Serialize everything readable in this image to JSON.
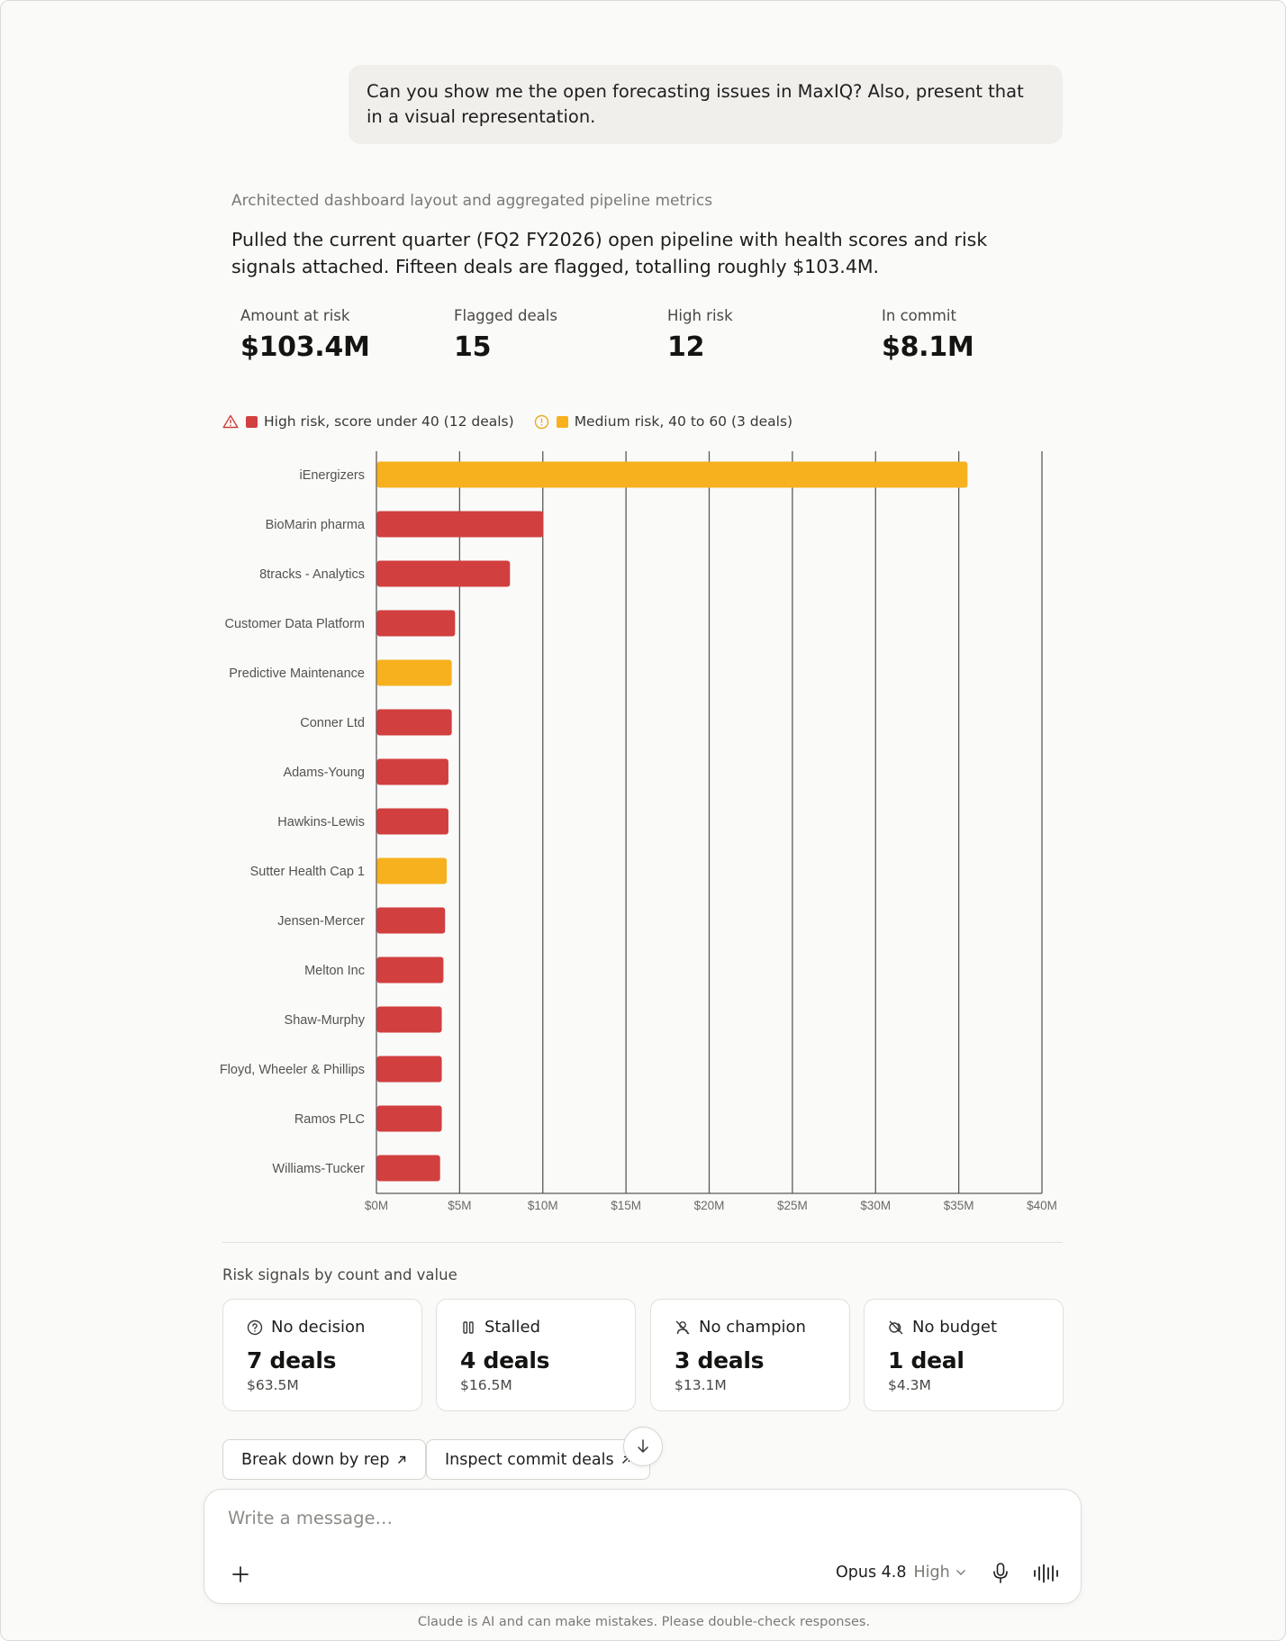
{
  "conversation": {
    "user_message": "Can you show me the open forecasting issues in MaxIQ? Also, present that in a visual representation.",
    "thinking_label": "Architected dashboard layout and aggregated pipeline metrics",
    "response_text": "Pulled the current quarter (FQ2 FY2026) open pipeline with health scores and risk signals attached. Fifteen deals are flagged, totalling roughly $103.4M."
  },
  "metrics": [
    {
      "label": "Amount at risk",
      "value": "$103.4M"
    },
    {
      "label": "Flagged deals",
      "value": "15"
    },
    {
      "label": "High risk",
      "value": "12"
    },
    {
      "label": "In commit",
      "value": "$8.1M"
    }
  ],
  "legend": {
    "high": "High risk, score under 40 (12 deals)",
    "medium": "Medium risk, 40 to 60 (3 deals)"
  },
  "colors": {
    "high": "#d23f3f",
    "medium": "#f7b11e",
    "high_icon": "#c8423a",
    "medium_icon": "#e8ab1c",
    "gridline": "#5a5a5a"
  },
  "chart_data": {
    "type": "bar",
    "orientation": "horizontal",
    "categories": [
      "iEnergizers",
      "BioMarin pharma",
      "8tracks - Analytics",
      "Customer Data Platform",
      "Predictive Maintenance",
      "Conner Ltd",
      "Adams-Young",
      "Hawkins-Lewis",
      "Sutter Health Cap 1",
      "Jensen-Mercer",
      "Melton Inc",
      "Shaw-Murphy",
      "Floyd, Wheeler & Phillips",
      "Ramos PLC",
      "Williams-Tucker"
    ],
    "values": [
      35.5,
      10.0,
      8.0,
      4.7,
      4.5,
      4.5,
      4.3,
      4.3,
      4.2,
      4.1,
      4.0,
      3.9,
      3.9,
      3.9,
      3.8
    ],
    "risk": [
      "medium",
      "high",
      "high",
      "high",
      "medium",
      "high",
      "high",
      "high",
      "medium",
      "high",
      "high",
      "high",
      "high",
      "high",
      "high"
    ],
    "xlim": [
      0,
      40
    ],
    "x_ticks": [
      0,
      5,
      10,
      15,
      20,
      25,
      30,
      35,
      40
    ],
    "x_tick_labels": [
      "$0M",
      "$5M",
      "$10M",
      "$15M",
      "$20M",
      "$25M",
      "$30M",
      "$35M",
      "$40M"
    ],
    "grid": true,
    "legend_position": "top-left"
  },
  "signals": {
    "title": "Risk signals by count and value",
    "cards": [
      {
        "label": "No decision",
        "count": "7 deals",
        "value": "$63.5M",
        "icon": "question-circle-icon"
      },
      {
        "label": "Stalled",
        "count": "4 deals",
        "value": "$16.5M",
        "icon": "pause-icon"
      },
      {
        "label": "No champion",
        "count": "3 deals",
        "value": "$13.1M",
        "icon": "user-off-icon"
      },
      {
        "label": "No budget",
        "count": "1 deal",
        "value": "$4.3M",
        "icon": "coins-off-icon"
      }
    ]
  },
  "actions": {
    "breakdown": "Break down by rep",
    "inspect": "Inspect commit deals"
  },
  "composer": {
    "placeholder": "Write a message…",
    "model": "Opus 4.8",
    "effort": "High"
  },
  "disclaimer": "Claude is AI and can make mistakes. Please double-check responses."
}
